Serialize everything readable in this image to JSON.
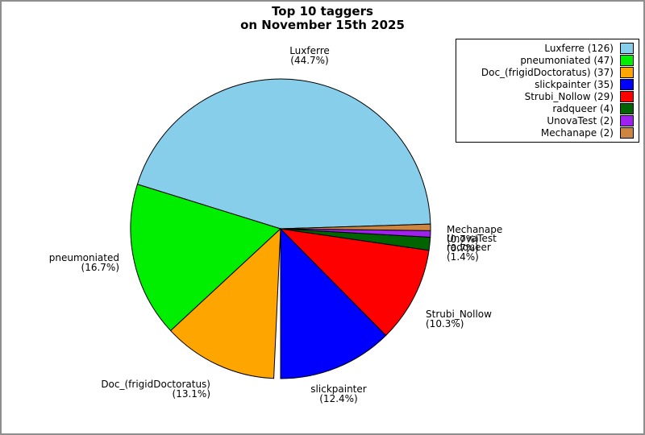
{
  "title": {
    "line1": "Top 10 taggers",
    "line2": "on November 15th 2025"
  },
  "chart_data": {
    "type": "pie",
    "title": "Top 10 taggers on November 15th 2025",
    "legend_position": "top-right",
    "background_color": "#ffffff",
    "slices": [
      {
        "label": "Luxferre",
        "count": 126,
        "pct": 44.7,
        "pct_label": "(44.7%)",
        "legend_label": "Luxferre (126)",
        "color": "#87CEEB"
      },
      {
        "label": "pneumoniated",
        "count": 47,
        "pct": 16.7,
        "pct_label": "(16.7%)",
        "legend_label": "pneumoniated (47)",
        "color": "#00EE00"
      },
      {
        "label": "Doc_(frigidDoctoratus)",
        "count": 37,
        "pct": 13.1,
        "pct_label": "(13.1%)",
        "legend_label": "Doc_(frigidDoctoratus) (37)",
        "color": "#FFA500"
      },
      {
        "label": "slickpainter",
        "count": 35,
        "pct": 12.4,
        "pct_label": "(12.4%)",
        "legend_label": "slickpainter (35)",
        "color": "#0000FF"
      },
      {
        "label": "Strubi_Nollow",
        "count": 29,
        "pct": 10.3,
        "pct_label": "(10.3%)",
        "legend_label": "Strubi_Nollow (29)",
        "color": "#FF0000"
      },
      {
        "label": "radqueer",
        "count": 4,
        "pct": 1.4,
        "pct_label": "(1.4%)",
        "legend_label": "radqueer (4)",
        "color": "#006400"
      },
      {
        "label": "UnovaTest",
        "count": 2,
        "pct": 0.7,
        "pct_label": "(0.7%)",
        "legend_label": "UnovaTest (2)",
        "color": "#A020F0"
      },
      {
        "label": "Mechanape",
        "count": 2,
        "pct": 0.7,
        "pct_label": "(0.7%)",
        "legend_label": "Mechanape (2)",
        "color": "#CD853F"
      }
    ]
  }
}
